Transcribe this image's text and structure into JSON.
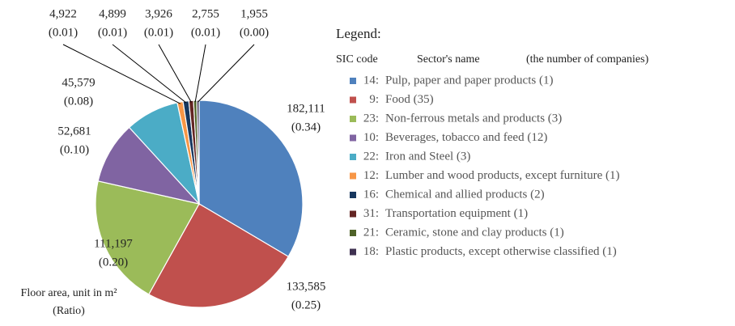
{
  "chart_data": {
    "type": "pie",
    "series": [
      {
        "name": "Pulp, paper and paper products (1)",
        "code": "14:",
        "color": "#4f81bd"
      },
      {
        "name": "Food (35)",
        "code": "9:",
        "color": "#c0504d"
      },
      {
        "name": "Non-ferrous metals and products (3)",
        "code": "23:",
        "color": "#9bbb59"
      },
      {
        "name": "Beverages, tobacco and feed (12)",
        "code": "10:",
        "color": "#8064a2"
      },
      {
        "name": "Iron and Steel (3)",
        "code": "22:",
        "color": "#4bacc6"
      },
      {
        "name": "Lumber and wood products, except furniture (1)",
        "code": "12:",
        "color": "#f79646"
      },
      {
        "name": "Chemical and allied products (2)",
        "code": "16:",
        "color": "#17375e"
      },
      {
        "name": "Transportation equipment (1)",
        "code": "31:",
        "color": "#632523"
      },
      {
        "name": "Ceramic, stone and clay products (1)",
        "code": "21:",
        "color": "#4f6228"
      },
      {
        "name": "Plastic products, except otherwise classified (1)",
        "code": "18:",
        "color": "#3f3151"
      }
    ],
    "values": [
      182111,
      133585,
      111197,
      52681,
      45579,
      4922,
      4899,
      3926,
      2755,
      1955
    ],
    "value_labels": [
      "182,111",
      "133,585",
      "111,197",
      "52,681",
      "45,579",
      "4,922",
      "4,899",
      "3,926",
      "2,755",
      "1,955"
    ],
    "ratio_labels": [
      "(0.34)",
      "(0.25)",
      "(0.20)",
      "(0.10)",
      "(0.08)",
      "(0.01)",
      "(0.01)",
      "(0.01)",
      "(0.01)",
      "(0.00)"
    ],
    "legend_title": "Legend:",
    "legend_headers": [
      "SIC code",
      "Sector's name",
      "(the number of companies)"
    ],
    "annotation": [
      "Floor area, unit in m²",
      "(Ratio)"
    ]
  }
}
